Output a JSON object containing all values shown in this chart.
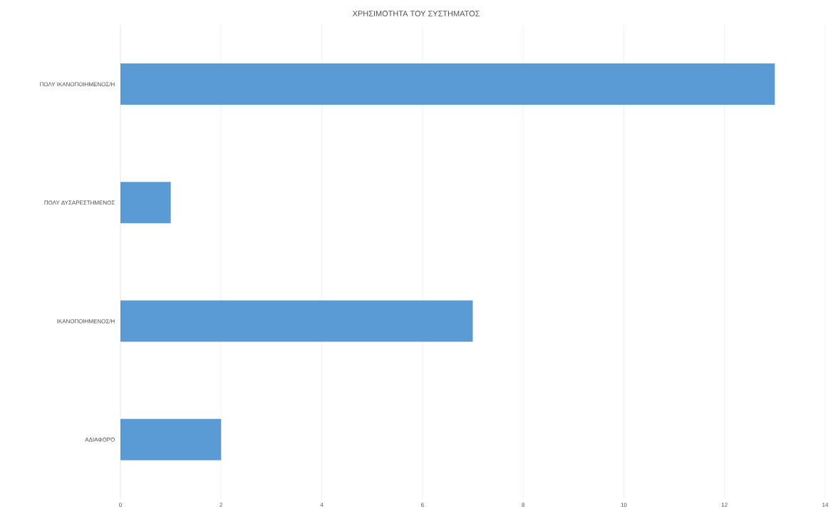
{
  "chart_data": {
    "type": "bar",
    "orientation": "horizontal",
    "title": "ΧΡΗΣΙΜΟΤΗΤΑ ΤΟΥ ΣΥΣΤΗΜΑΤΟΣ",
    "categories": [
      "ΠΟΛΥ ΙΚΑΝΟΠΟΙΗΜΕΝΟΣ/Η",
      "ΠΟΛΥ ΔΥΣΑΡΕΣΤΗΜΕΝΟΣ",
      "ΙΚΑΝΟΠΟΙΗΜΕΝΟΣ/Η",
      "ΑΔΙΑΦΟΡΟ"
    ],
    "values": [
      13,
      1,
      7,
      2
    ],
    "color": "#5b9bd5",
    "xlim": [
      0,
      14
    ],
    "xticks": [
      0,
      2,
      4,
      6,
      8,
      10,
      12,
      14
    ],
    "grid": "x"
  }
}
